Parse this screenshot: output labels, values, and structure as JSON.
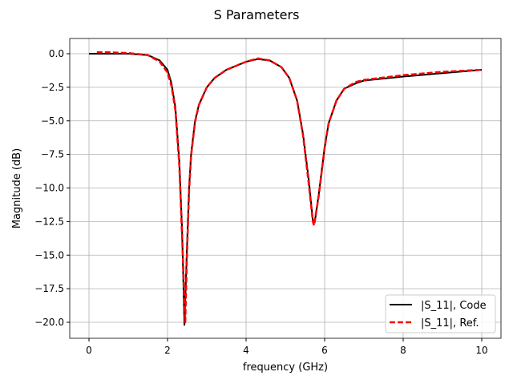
{
  "chart_data": {
    "type": "line",
    "title": "S Parameters",
    "xlabel": "frequency (GHz)",
    "ylabel": "Magnitude (dB)",
    "xlim": [
      -0.5,
      10.5
    ],
    "ylim": [
      -21.2,
      1.1
    ],
    "xticks": [
      0,
      2,
      4,
      6,
      8,
      10
    ],
    "xtick_labels": [
      "0",
      "2",
      "4",
      "6",
      "8",
      "10"
    ],
    "yticks": [
      0,
      -2.5,
      -5,
      -7.5,
      -10,
      -12.5,
      -15,
      -17.5,
      -20
    ],
    "ytick_labels": [
      "0.0",
      "−2.5",
      "−5.0",
      "−7.5",
      "−10.0",
      "−12.5",
      "−15.0",
      "−17.5",
      "−20.0"
    ],
    "grid": true,
    "legend_position": "lower-right",
    "series": [
      {
        "name": "|S_11|, Code",
        "color": "#000000",
        "style": "solid",
        "x": [
          0,
          0.5,
          1,
          1.5,
          1.8,
          2.0,
          2.1,
          2.2,
          2.3,
          2.37,
          2.43,
          2.5,
          2.55,
          2.6,
          2.7,
          2.8,
          3.0,
          3.2,
          3.5,
          4.0,
          4.3,
          4.6,
          4.9,
          5.1,
          5.3,
          5.45,
          5.6,
          5.7,
          5.75,
          5.85,
          6.0,
          6.1,
          6.3,
          6.5,
          6.8,
          7,
          8,
          9,
          10
        ],
        "y": [
          0,
          0,
          0,
          -0.1,
          -0.5,
          -1.2,
          -2.2,
          -4.0,
          -8,
          -13,
          -20.2,
          -14,
          -10,
          -7.5,
          -5,
          -3.8,
          -2.5,
          -1.8,
          -1.2,
          -0.6,
          -0.4,
          -0.5,
          -1.0,
          -1.8,
          -3.5,
          -6,
          -9.5,
          -12.4,
          -12.5,
          -10.5,
          -7,
          -5.2,
          -3.5,
          -2.6,
          -2.2,
          -2.0,
          -1.7,
          -1.45,
          -1.2
        ]
      },
      {
        "name": "|S_11|, Ref.",
        "color": "#ff0000",
        "style": "dashed",
        "x": [
          0.2,
          0.5,
          1,
          1.5,
          1.8,
          2.0,
          2.1,
          2.2,
          2.3,
          2.37,
          2.45,
          2.5,
          2.55,
          2.6,
          2.7,
          2.8,
          3.0,
          3.2,
          3.5,
          4.0,
          4.3,
          4.6,
          4.9,
          5.1,
          5.3,
          5.45,
          5.6,
          5.7,
          5.73,
          5.85,
          6.0,
          6.1,
          6.3,
          6.5,
          6.8,
          7,
          8,
          9,
          10
        ],
        "y": [
          0.1,
          0.1,
          0.05,
          -0.1,
          -0.6,
          -1.4,
          -2.4,
          -4.2,
          -8.3,
          -13.5,
          -20,
          -14.5,
          -10.2,
          -7.6,
          -5.1,
          -3.8,
          -2.5,
          -1.8,
          -1.2,
          -0.6,
          -0.35,
          -0.5,
          -1.0,
          -1.8,
          -3.5,
          -6.1,
          -9.8,
          -12.5,
          -12.8,
          -10.6,
          -7,
          -5.2,
          -3.5,
          -2.6,
          -2.1,
          -1.95,
          -1.6,
          -1.35,
          -1.2
        ]
      }
    ]
  }
}
